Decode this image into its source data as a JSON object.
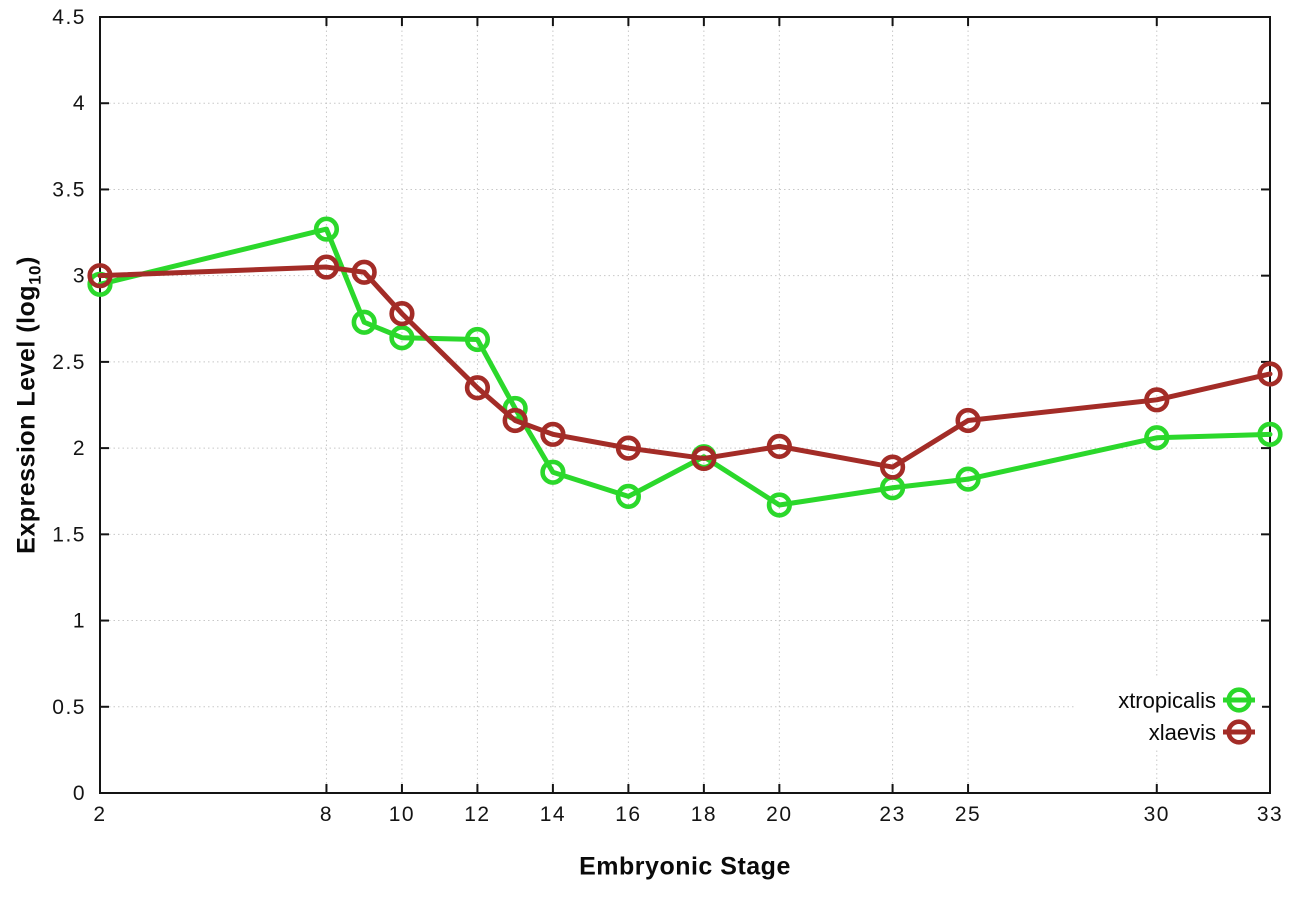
{
  "figure": {
    "background_color": "#ffffff",
    "xlabel": "Embryonic Stage",
    "ylabel": {
      "prefix": "Expression Level (log",
      "sub": "10",
      "suffix": ")"
    }
  },
  "chart_data": {
    "type": "line",
    "title": "",
    "xlabel": "Embryonic Stage",
    "ylabel": "Expression Level (log10)",
    "x": [
      2,
      8,
      9,
      10,
      12,
      13,
      14,
      16,
      18,
      20,
      23,
      25,
      30,
      33
    ],
    "series": [
      {
        "name": "xtropicalis",
        "color": "#2bd82b",
        "marker": "open-circle",
        "values": [
          2.95,
          3.27,
          2.73,
          2.64,
          2.63,
          2.23,
          1.86,
          1.72,
          1.95,
          1.67,
          1.77,
          1.82,
          2.06,
          2.08
        ]
      },
      {
        "name": "xlaevis",
        "color": "#a32c27",
        "marker": "open-circle",
        "values": [
          3.0,
          3.05,
          3.02,
          2.78,
          2.35,
          2.16,
          2.08,
          2.0,
          1.94,
          2.01,
          1.89,
          2.16,
          2.28,
          2.43
        ]
      }
    ],
    "xlim": [
      2,
      33
    ],
    "ylim": [
      0,
      4.5
    ],
    "xticks": {
      "values": [
        2,
        8,
        10,
        12,
        14,
        16,
        18,
        20,
        23,
        25,
        30,
        33
      ],
      "labels": [
        "2",
        "8",
        "10",
        "12",
        "14",
        "16",
        "18",
        "20",
        "23",
        "25",
        "30",
        "33"
      ]
    },
    "yticks": {
      "values": [
        0,
        0.5,
        1,
        1.5,
        2,
        2.5,
        3,
        3.5,
        4,
        4.5
      ],
      "labels": [
        "0",
        "0.5",
        "1",
        "1.5",
        "2",
        "2.5",
        "3",
        "3.5",
        "4",
        "4.5"
      ]
    },
    "grid": true,
    "grid_color": "#c8c8c8",
    "axis_color": "#141414",
    "tick_label_color": "#141414",
    "legend_position": "bottom-right",
    "legend_opaque": true,
    "legend_entries": [
      "xtropicalis",
      "xlaevis"
    ]
  }
}
